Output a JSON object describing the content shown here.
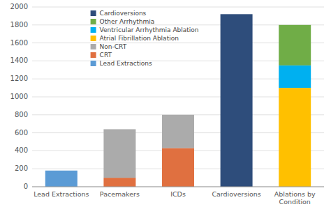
{
  "chart_data": {
    "type": "bar",
    "stacked": true,
    "categories": [
      "Lead Extractions",
      "Pacemakers",
      "ICDs",
      "Cardioversions",
      "Ablations by Condition"
    ],
    "series": [
      {
        "name": "Cardioversions",
        "color": "#2E4D7B",
        "values": [
          0,
          0,
          0,
          1920,
          0
        ]
      },
      {
        "name": "Other Arrhythmia",
        "color": "#70AD47",
        "values": [
          0,
          0,
          0,
          0,
          450
        ]
      },
      {
        "name": "Ventricular Arrhythmia Ablation",
        "color": "#00B0F0",
        "values": [
          0,
          0,
          0,
          0,
          250
        ]
      },
      {
        "name": "Atrial Fibrillation Ablation",
        "color": "#FFC000",
        "values": [
          0,
          0,
          0,
          0,
          1100
        ]
      },
      {
        "name": "Non-CRT",
        "color": "#ABABAB",
        "values": [
          0,
          540,
          370,
          0,
          0
        ]
      },
      {
        "name": "CRT",
        "color": "#E07040",
        "values": [
          0,
          100,
          430,
          0,
          0
        ]
      },
      {
        "name": "Lead Extractions",
        "color": "#5B9BD5",
        "values": [
          180,
          0,
          0,
          0,
          0
        ]
      }
    ],
    "ylim": [
      0,
      2000
    ],
    "yticks": [
      0,
      200,
      400,
      600,
      800,
      1000,
      1200,
      1400,
      1600,
      1800,
      2000
    ],
    "grid": true,
    "legend": "upper left"
  }
}
